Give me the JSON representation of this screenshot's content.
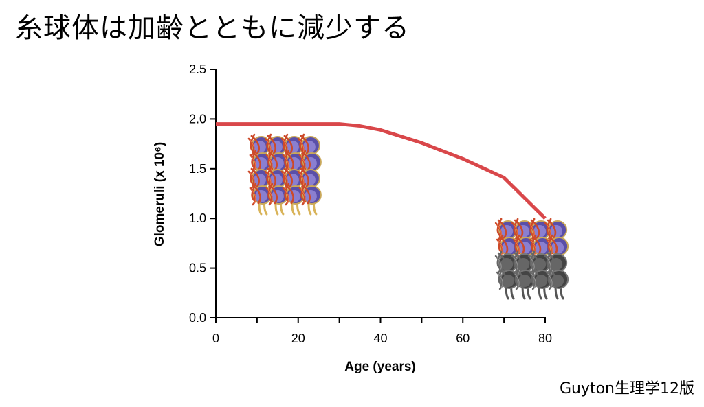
{
  "slide_title": "糸球体は加齢とともに減少する",
  "source_note": "Guyton生理学12版",
  "chart_data": {
    "type": "line",
    "xlabel": "Age (years)",
    "ylabel": "Glomeruli (x 10⁶)",
    "xlim": [
      0,
      80
    ],
    "ylim": [
      0,
      2.5
    ],
    "x_ticks": [
      0,
      20,
      40,
      60,
      80
    ],
    "x_minor_ticks": [
      10,
      30,
      50,
      70
    ],
    "y_ticks": [
      "0.0",
      "0.5",
      "1.0",
      "1.5",
      "2.0",
      "2.5"
    ],
    "grid": false,
    "series": [
      {
        "color": "#d9474a",
        "x": [
          0,
          10,
          20,
          30,
          35,
          40,
          50,
          60,
          70,
          80
        ],
        "y": [
          1.95,
          1.95,
          1.95,
          1.95,
          1.93,
          1.89,
          1.76,
          1.6,
          1.41,
          1.0
        ]
      }
    ],
    "illustrations": [
      {
        "name": "young-glomeruli-cluster",
        "at_age": 10,
        "healthy_fraction": 1.0
      },
      {
        "name": "old-glomeruli-cluster",
        "at_age": 70,
        "healthy_fraction": 0.5
      }
    ]
  }
}
